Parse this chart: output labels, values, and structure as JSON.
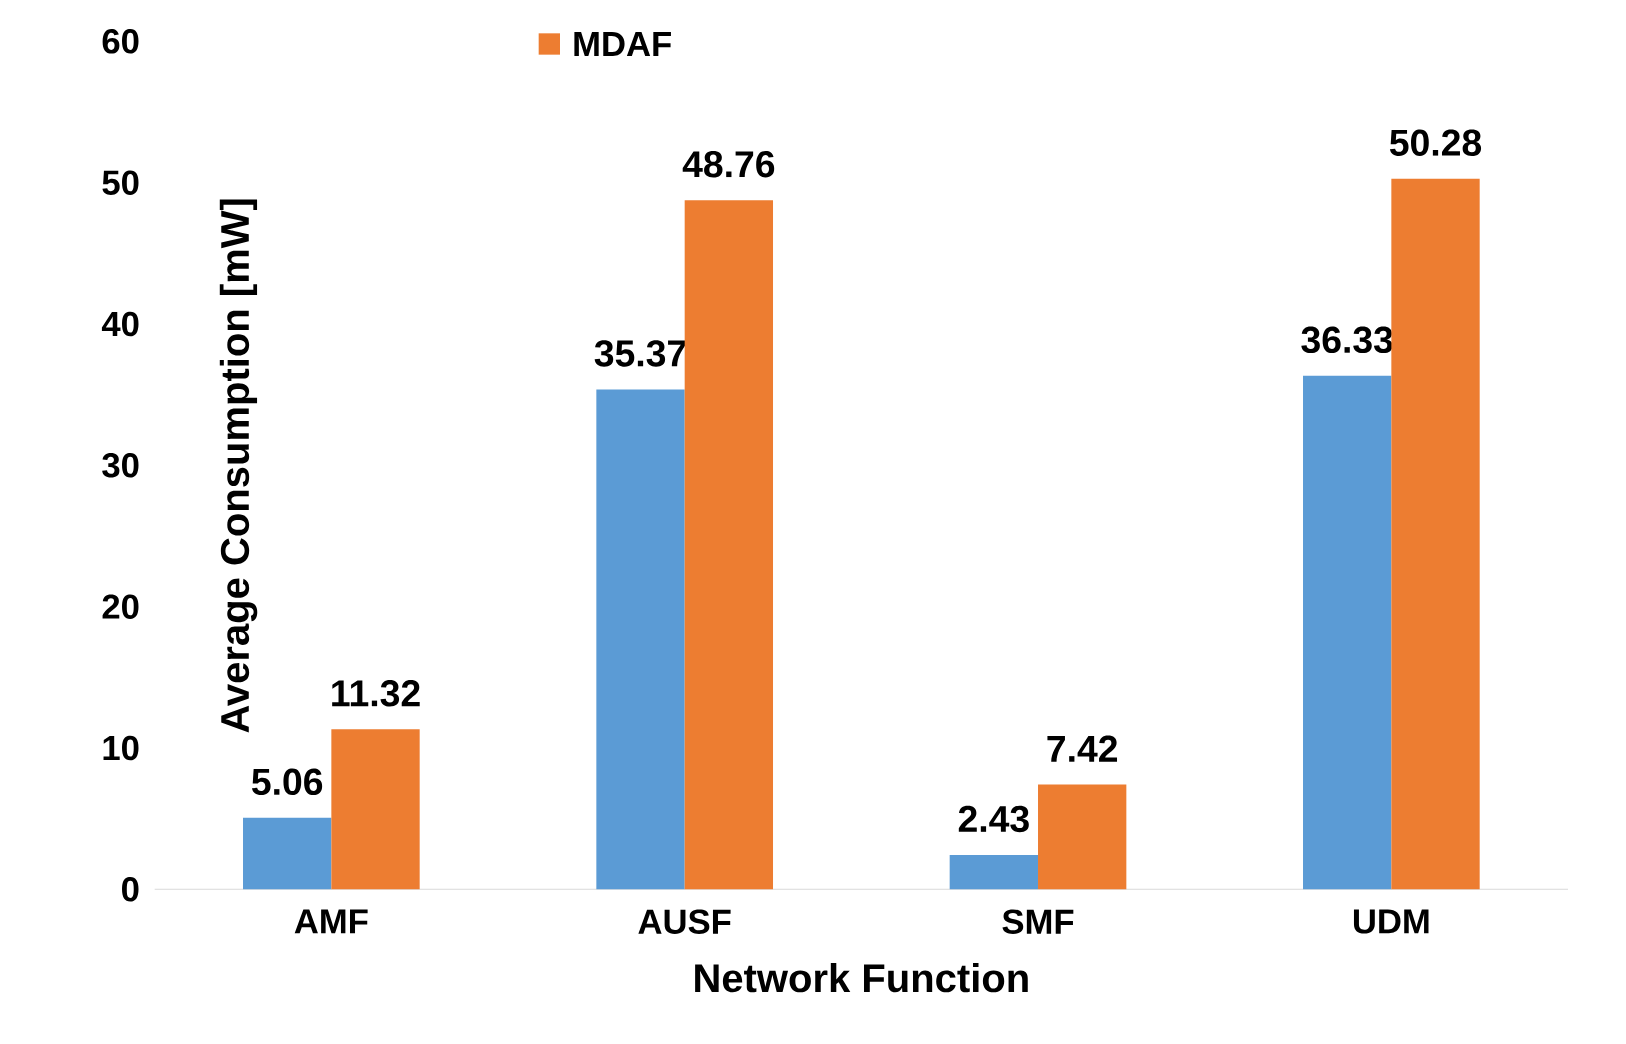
{
  "chart_data": {
    "type": "bar",
    "xlabel": "Network Function",
    "ylabel": "Average Consumption [mW]",
    "categories": [
      "AMF",
      "AUSF",
      "SMF",
      "UDM"
    ],
    "series": [
      {
        "color": "#5b9bd5",
        "values": [
          5.06,
          35.37,
          2.43,
          36.33
        ]
      },
      {
        "name": "MDAF",
        "color": "#ed7d31",
        "values": [
          11.32,
          48.76,
          7.42,
          50.28
        ]
      }
    ],
    "ylim": [
      0,
      60
    ],
    "yticks": [
      0,
      10,
      20,
      30,
      40,
      50,
      60
    ],
    "grid": false,
    "legend": "top left",
    "data_labels": true
  }
}
